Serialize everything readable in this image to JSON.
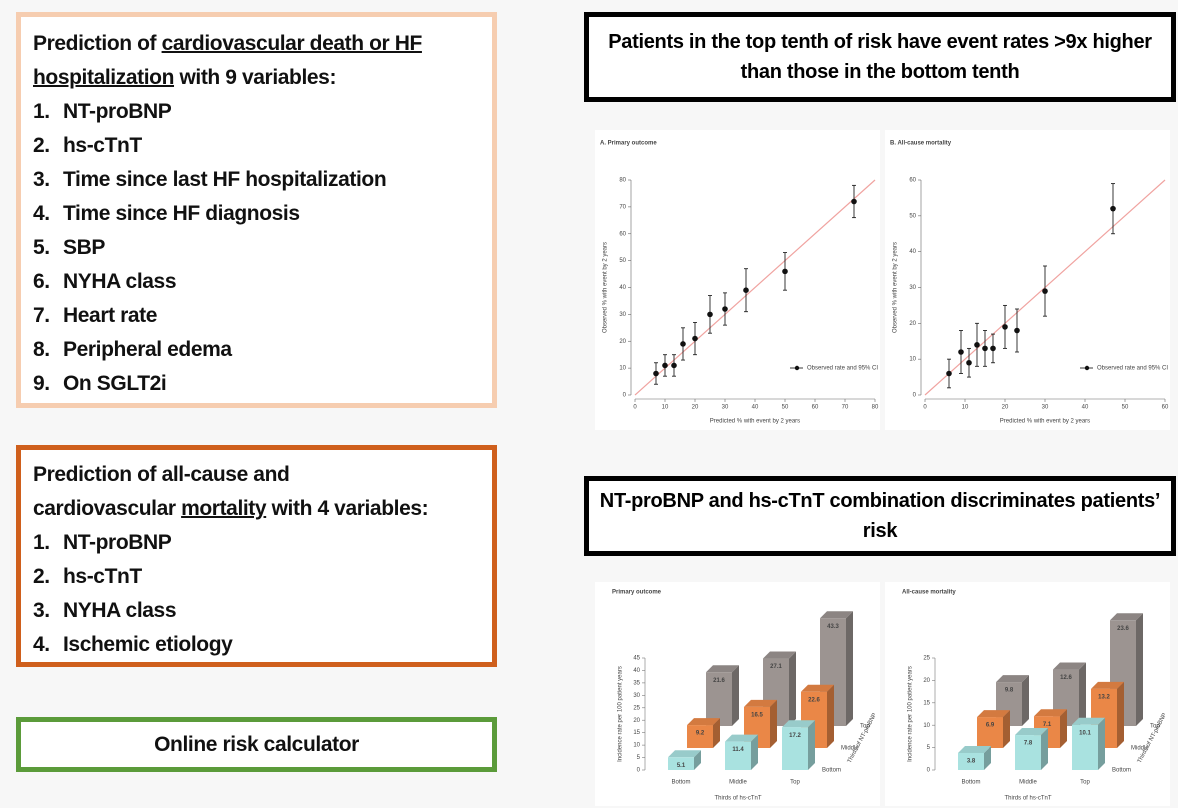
{
  "left": {
    "box1": {
      "line1_plain": "Prediction of ",
      "line1_underlined": "cardiovascular death or HF",
      "line2_underlined": "hospitalization",
      "line2_plain": " with 9 variables:",
      "items": [
        {
          "number": "1.",
          "text": "NT-proBNP"
        },
        {
          "number": "2.",
          "text": "hs-cTnT"
        },
        {
          "number": "3.",
          "text": "Time since last HF hospitalization"
        },
        {
          "number": "4.",
          "text": "Time since HF diagnosis"
        },
        {
          "number": "5.",
          "text": "SBP"
        },
        {
          "number": "6.",
          "text": "NYHA class"
        },
        {
          "number": "7.",
          "text": "Heart rate"
        },
        {
          "number": "8.",
          "text": "Peripheral edema"
        },
        {
          "number": "9.",
          "text": "On SGLT2i"
        }
      ]
    },
    "box2": {
      "line1_plain": "Prediction of all-cause and",
      "line2_plain_before": "cardiovascular ",
      "line2_underlined": "mortality",
      "line2_plain_after": " with 4 variables:",
      "items": [
        {
          "number": "1.",
          "text": "NT-proBNP"
        },
        {
          "number": "2.",
          "text": "hs-cTnT"
        },
        {
          "number": "3.",
          "text": "NYHA class"
        },
        {
          "number": "4.",
          "text": "Ischemic etiology"
        }
      ]
    },
    "box3": {
      "text": "Online risk calculator"
    }
  },
  "right": {
    "header1": "Patients in the top tenth of risk have event rates >9x higher than those in the bottom tenth",
    "header2": "NT-proBNP and hs-cTnT combination discriminates patients’ risk"
  },
  "calibration_plots": [
    {
      "type": "scatter",
      "title": "A. Primary outcome",
      "x_label": "Predicted % with event by 2 years",
      "y_label": "Observed % with event by 2 years",
      "legend": "Observed rate and 95% CI",
      "x": [
        7,
        10,
        13,
        16,
        20,
        25,
        30,
        37,
        50,
        73
      ],
      "y": [
        8,
        11,
        11,
        19,
        21,
        30,
        32,
        39,
        46,
        72
      ],
      "error": [
        4,
        4,
        4,
        6,
        6,
        7,
        6,
        8,
        7,
        6
      ],
      "xlim": [
        0,
        80
      ],
      "ylim": [
        0,
        80
      ],
      "xticks": [
        0,
        10,
        20,
        30,
        40,
        50,
        60,
        70,
        80
      ],
      "yticks": [
        0,
        10,
        20,
        30,
        40,
        50,
        60,
        70,
        80
      ]
    },
    {
      "type": "scatter",
      "title": "B. All-cause mortality",
      "x_label": "Predicted % with event by 2 years",
      "y_label": "Observed % with event by 2 years",
      "legend": "Observed rate and 95% CI",
      "x": [
        6,
        9,
        11,
        13,
        15,
        17,
        20,
        23,
        30,
        47
      ],
      "y": [
        6,
        12,
        9,
        14,
        13,
        13,
        19,
        18,
        29,
        52
      ],
      "error": [
        4,
        6,
        4,
        6,
        5,
        4,
        6,
        6,
        7,
        7
      ],
      "xlim": [
        0,
        60
      ],
      "ylim": [
        0,
        60
      ],
      "xticks": [
        0,
        10,
        20,
        30,
        40,
        50,
        60
      ],
      "yticks": [
        0,
        10,
        20,
        30,
        40,
        50,
        60
      ]
    }
  ],
  "bar_charts": [
    {
      "type": "bar3d",
      "title": "Primary outcome",
      "y_label": "Incidence rate per 100 patient years",
      "x_label": "Thirds of hs-cTnT",
      "depth_label": "Thirds of NT-proBNP",
      "categories": [
        "Bottom",
        "Middle",
        "Top"
      ],
      "series": [
        {
          "name": "Bottom",
          "color": "#a9e2e0",
          "values": [
            5.1,
            11.4,
            17.2
          ]
        },
        {
          "name": "Middle",
          "color": "#ea8747",
          "values": [
            9.2,
            16.5,
            22.6
          ]
        },
        {
          "name": "Top",
          "color": "#9c9491",
          "values": [
            21.6,
            27.1,
            43.3
          ]
        }
      ],
      "ylim": [
        0,
        45
      ],
      "yticks": [
        0,
        5,
        10,
        15,
        20,
        25,
        30,
        35,
        40,
        45
      ]
    },
    {
      "type": "bar3d",
      "title": "All-cause mortality",
      "y_label": "Incidence rate per 100 patient years",
      "x_label": "Thirds of hs-cTnT",
      "depth_label": "Thirds of NT-proBNP",
      "categories": [
        "Bottom",
        "Middle",
        "Top"
      ],
      "series": [
        {
          "name": "Bottom",
          "color": "#a9e2e0",
          "values": [
            3.8,
            7.8,
            10.1
          ]
        },
        {
          "name": "Middle",
          "color": "#ea8747",
          "values": [
            6.9,
            7.1,
            13.2
          ]
        },
        {
          "name": "Top",
          "color": "#9c9491",
          "values": [
            9.8,
            12.6,
            23.6
          ]
        }
      ],
      "ylim": [
        0,
        25
      ],
      "yticks": [
        0,
        5,
        10,
        15,
        20,
        25
      ]
    }
  ]
}
